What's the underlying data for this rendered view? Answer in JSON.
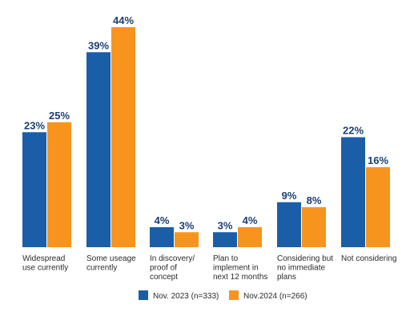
{
  "chart_data": {
    "type": "bar",
    "categories": [
      [
        "Widespread",
        "use currently"
      ],
      [
        "Some useage",
        "currently"
      ],
      [
        "In discovery/",
        "proof of",
        "concept"
      ],
      [
        "Plan to",
        "implement in",
        "next 12 months"
      ],
      [
        "Considering but",
        "no immediate",
        "plans"
      ],
      [
        "Not considering"
      ]
    ],
    "series": [
      {
        "name": "Nov. 2023 (n=333)",
        "values": [
          23,
          39,
          4,
          3,
          9,
          22
        ],
        "color": "#1a5ea8"
      },
      {
        "name": "Nov.2024 (n=266)",
        "values": [
          25,
          44,
          3,
          4,
          8,
          16
        ],
        "color": "#f7941d"
      }
    ],
    "value_suffix": "%",
    "ylim": [
      0,
      44
    ],
    "grid": false,
    "legend": "bottom-center",
    "title": "",
    "xlabel": "",
    "ylabel": ""
  }
}
